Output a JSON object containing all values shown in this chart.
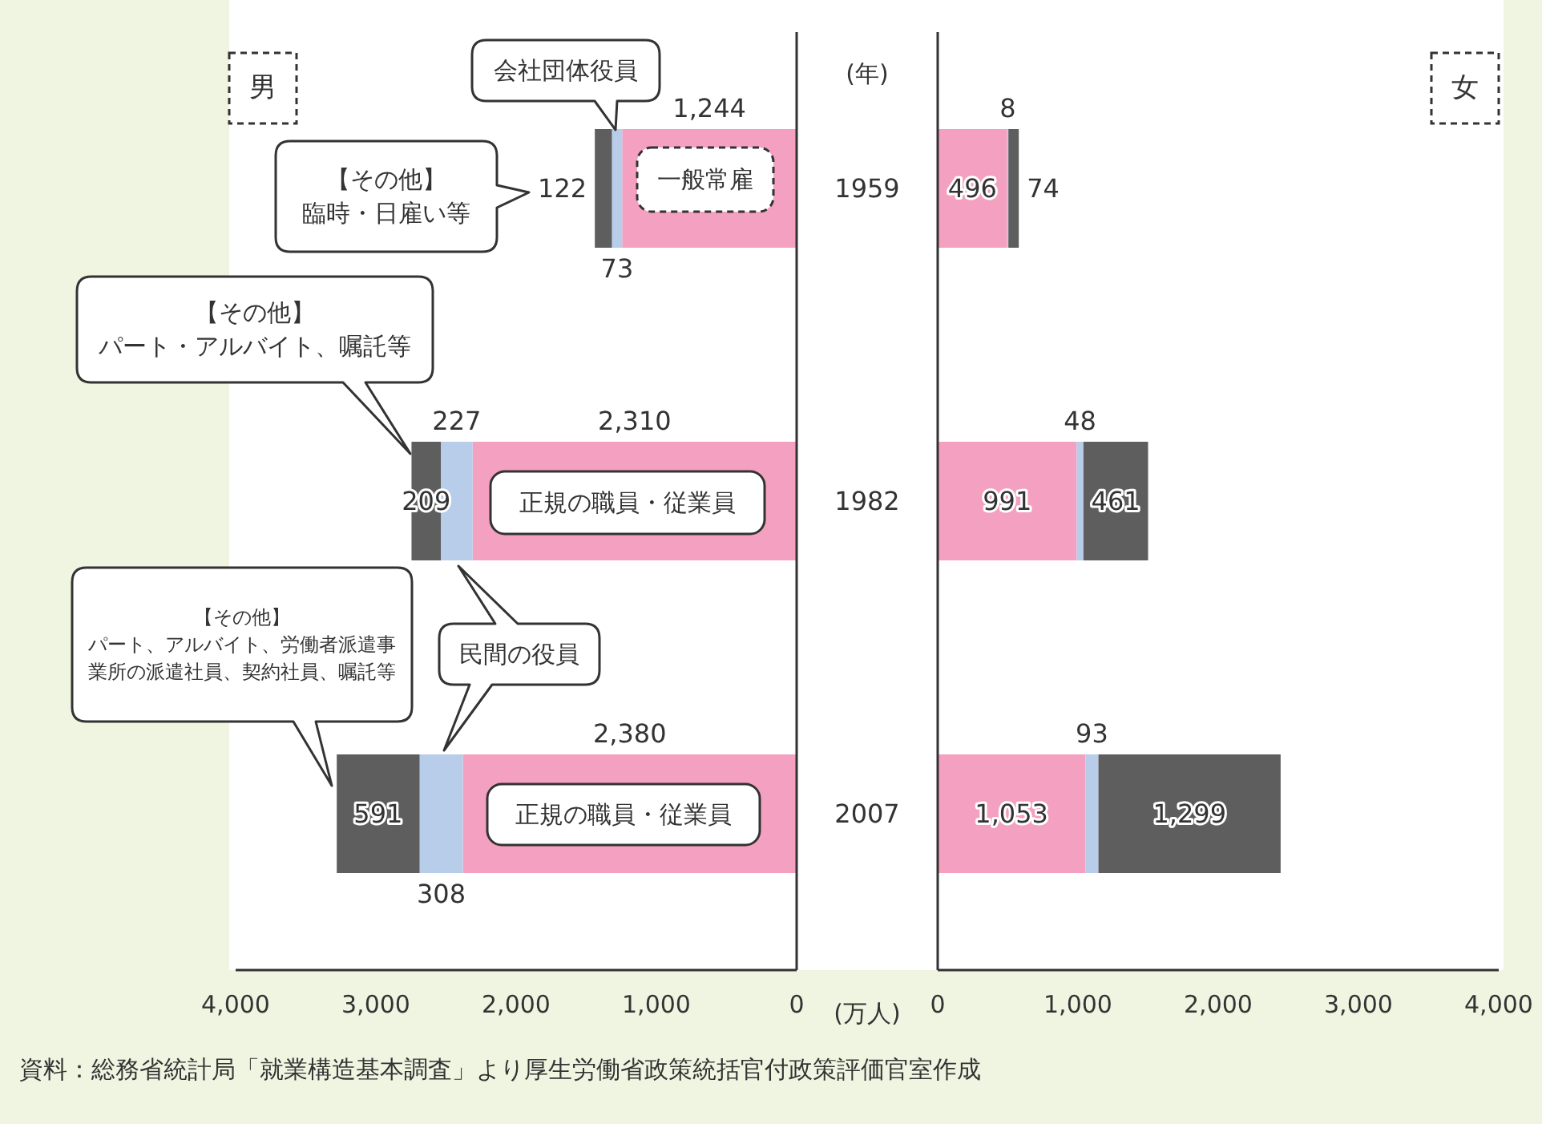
{
  "chart_data": [
    {
      "type": "bar",
      "orientation": "horizontal",
      "stacked": true,
      "title": "男",
      "ylabel": "(年)",
      "xlabel": "(万人)",
      "categories": [
        "1959",
        "1982",
        "2007"
      ],
      "xlim": [
        4000,
        0
      ],
      "xticks": [
        {
          "value": 4000,
          "label": "4,000"
        },
        {
          "value": 3000,
          "label": "3,000"
        },
        {
          "value": 2000,
          "label": "2,000"
        },
        {
          "value": 1000,
          "label": "1,000"
        },
        0
      ],
      "series": [
        {
          "color": "#f4a0c0",
          "values": [
            1244,
            2310,
            2380
          ],
          "value_labels": [
            "1,244",
            "2,310",
            "2,380"
          ]
        },
        {
          "color": "#b7cde9",
          "values": [
            73,
            227,
            308
          ],
          "value_labels": [
            "73",
            "227",
            "308"
          ]
        },
        {
          "color": "#5e5e5e",
          "values": [
            122,
            209,
            591
          ],
          "value_labels": [
            "122",
            "209",
            "591"
          ]
        }
      ],
      "annotations": [
        "会社団体役員",
        "【その他】臨時・日雇い等",
        "一般常雇",
        "【その他】パート・アルバイト、嘱託等",
        "正規の職員・従業員",
        "【その他】パート、アルバイト、労働者派遣事業所の派遣社員、契約社員、嘱託等",
        "民間の役員",
        "正規の職員・従業員",
        "資料：総務省統計局「就業構造基本調査」より厚生労働省政策統括官付政策評価官室作成"
      ]
    },
    {
      "type": "bar",
      "orientation": "horizontal",
      "stacked": true,
      "title": "女",
      "tick_labels": "x",
      "categories": [
        "1959",
        "1982",
        "2007"
      ],
      "xlim": [
        0,
        4000
      ],
      "xticks": [
        0,
        {
          "value": 1000,
          "label": "1,000"
        },
        {
          "value": 2000,
          "label": "2,000"
        },
        {
          "value": 3000,
          "label": "3,000"
        },
        {
          "value": 4000,
          "label": "4,000"
        }
      ],
      "series": [
        {
          "color": "#f4a0c0",
          "values": [
            496,
            991,
            1053
          ],
          "value_labels": [
            "496",
            "991",
            "1,053"
          ]
        },
        {
          "color": "#b7cde9",
          "values": [
            8,
            48,
            93
          ],
          "value_labels": [
            "8",
            "48",
            "93"
          ]
        },
        {
          "color": "#5e5e5e",
          "values": [
            74,
            461,
            1299
          ],
          "value_labels": [
            "74",
            "461",
            "1,299"
          ]
        }
      ]
    }
  ]
}
